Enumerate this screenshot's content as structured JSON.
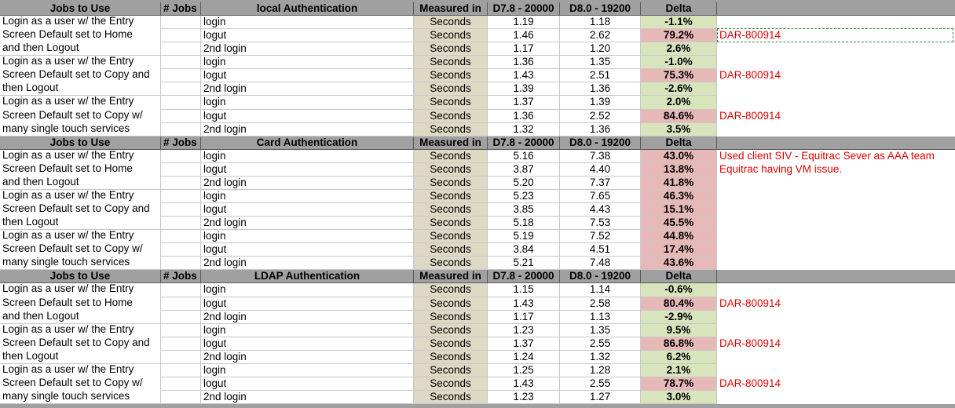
{
  "sections": [
    {
      "header": {
        "jobs": "Jobs to Use",
        "count": "# Jobs",
        "auth": "local Authentication",
        "unit": "Measured in",
        "old": "D7.8 - 20000",
        "new": "D8.0 - 19200",
        "delta": "Delta"
      },
      "rows": [
        {
          "job": "Login as a user w/ the Entry",
          "step": "login",
          "unit": "Seconds",
          "old": "1.19",
          "new": "1.18",
          "delta": "-1.1%"
        },
        {
          "job": "Screen Default set to Home",
          "step": "logut",
          "unit": "Seconds",
          "old": "1.46",
          "new": "2.62",
          "delta": "79.2%",
          "note": "DAR-800914"
        },
        {
          "job": "and then Logout",
          "step": "2nd login",
          "unit": "Seconds",
          "old": "1.17",
          "new": "1.20",
          "delta": "2.6%"
        },
        {
          "job": "Login as a user w/ the Entry",
          "step": "login",
          "unit": "Seconds",
          "old": "1.36",
          "new": "1.35",
          "delta": "-1.0%"
        },
        {
          "job": "Screen Default set to Copy and",
          "step": "logut",
          "unit": "Seconds",
          "old": "1.43",
          "new": "2.51",
          "delta": "75.3%",
          "note": "DAR-800914"
        },
        {
          "job": "then Logout",
          "step": "2nd login",
          "unit": "Seconds",
          "old": "1.39",
          "new": "1.36",
          "delta": "-2.6%"
        },
        {
          "job": "Login as a user w/ the Entry",
          "step": "login",
          "unit": "Seconds",
          "old": "1.37",
          "new": "1.39",
          "delta": "2.0%"
        },
        {
          "job": "Screen Default set to Copy w/",
          "step": "logut",
          "unit": "Seconds",
          "old": "1.36",
          "new": "2.52",
          "delta": "84.6%",
          "note": "DAR-800914"
        },
        {
          "job": "many single touch services",
          "step": "2nd login",
          "unit": "Seconds",
          "old": "1.32",
          "new": "1.36",
          "delta": "3.5%"
        }
      ]
    },
    {
      "header": {
        "jobs": "Jobs to Use",
        "count": "# Jobs",
        "auth": "Card Authentication",
        "unit": "Measured in",
        "old": "D7.8 - 20000",
        "new": "D8.0 - 19200",
        "delta": "Delta"
      },
      "rows": [
        {
          "job": "Login as a user w/ the Entry",
          "step": "login",
          "unit": "Seconds",
          "old": "5.16",
          "new": "7.38",
          "delta": "43.0%",
          "note": "Used client SIV - Equitrac Sever  as AAA team"
        },
        {
          "job": "Screen Default set to Home",
          "step": "logut",
          "unit": "Seconds",
          "old": "3.87",
          "new": "4.40",
          "delta": "13.8%",
          "note": "Equitrac having VM issue."
        },
        {
          "job": "and then Logout",
          "step": "2nd login",
          "unit": "Seconds",
          "old": "5.20",
          "new": "7.37",
          "delta": "41.8%"
        },
        {
          "job": "Login as a user w/ the Entry",
          "step": "login",
          "unit": "Seconds",
          "old": "5.23",
          "new": "7.65",
          "delta": "46.3%"
        },
        {
          "job": "Screen Default set to Copy and",
          "step": "logut",
          "unit": "Seconds",
          "old": "3.85",
          "new": "4.43",
          "delta": "15.1%"
        },
        {
          "job": "then Logout",
          "step": "2nd login",
          "unit": "Seconds",
          "old": "5.18",
          "new": "7.53",
          "delta": "45.5%"
        },
        {
          "job": "Login as a user w/ the Entry",
          "step": "login",
          "unit": "Seconds",
          "old": "5.19",
          "new": "7.52",
          "delta": "44.8%"
        },
        {
          "job": "Screen Default set to Copy w/",
          "step": "logut",
          "unit": "Seconds",
          "old": "3.84",
          "new": "4.51",
          "delta": "17.4%"
        },
        {
          "job": "many single touch services",
          "step": "2nd login",
          "unit": "Seconds",
          "old": "5.21",
          "new": "7.48",
          "delta": "43.6%"
        }
      ]
    },
    {
      "header": {
        "jobs": "Jobs to Use",
        "count": "# Jobs",
        "auth": "LDAP Authentication",
        "unit": "Measured in",
        "old": "D7.8 - 20000",
        "new": "D8.0 - 19200",
        "delta": "Delta"
      },
      "rows": [
        {
          "job": "Login as a user w/ the Entry",
          "step": "login",
          "unit": "Seconds",
          "old": "1.15",
          "new": "1.14",
          "delta": "-0.6%"
        },
        {
          "job": "Screen Default set to Home",
          "step": "logut",
          "unit": "Seconds",
          "old": "1.43",
          "new": "2.58",
          "delta": "80.4%",
          "note": "DAR-800914"
        },
        {
          "job": "and then Logout",
          "step": "2nd login",
          "unit": "Seconds",
          "old": "1.17",
          "new": "1.13",
          "delta": "-2.9%"
        },
        {
          "job": "Login as a user w/ the Entry",
          "step": "login",
          "unit": "Seconds",
          "old": "1.23",
          "new": "1.35",
          "delta": "9.5%"
        },
        {
          "job": "Screen Default set to Copy and",
          "step": "logut",
          "unit": "Seconds",
          "old": "1.37",
          "new": "2.55",
          "delta": "86.8%",
          "note": "DAR-800914"
        },
        {
          "job": "then Logout",
          "step": "2nd login",
          "unit": "Seconds",
          "old": "1.24",
          "new": "1.32",
          "delta": "6.2%"
        },
        {
          "job": "Login as a user w/ the Entry",
          "step": "login",
          "unit": "Seconds",
          "old": "1.25",
          "new": "1.28",
          "delta": "2.1%"
        },
        {
          "job": "Screen Default set to Copy w/",
          "step": "logut",
          "unit": "Seconds",
          "old": "1.43",
          "new": "2.55",
          "delta": "78.7%",
          "note": "DAR-800914"
        },
        {
          "job": "many single touch services",
          "step": "2nd login",
          "unit": "Seconds",
          "old": "1.23",
          "new": "1.27",
          "delta": "3.0%"
        }
      ]
    }
  ]
}
